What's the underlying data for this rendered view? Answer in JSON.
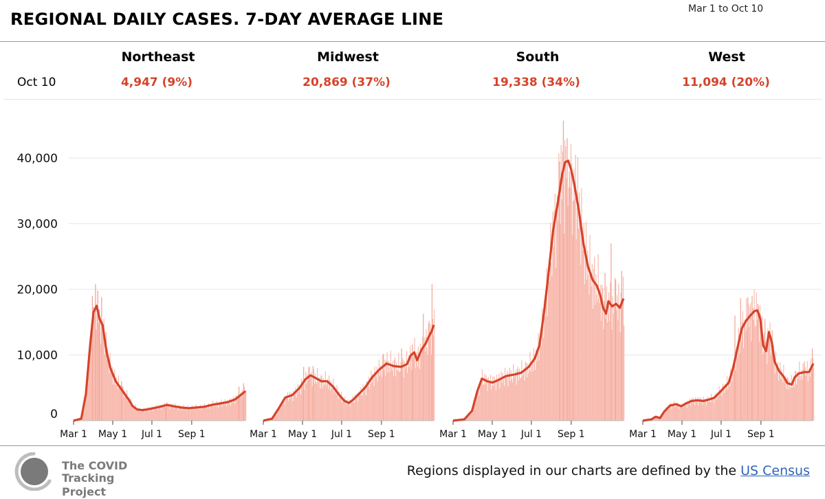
{
  "title": "REGIONAL DAILY CASES. 7-DAY AVERAGE LINE",
  "date_range": "Mar 1 to Oct 10",
  "row_label": "Oct 10",
  "regions": [
    {
      "name": "Northeast",
      "value": "4,947 (9%)"
    },
    {
      "name": "Midwest",
      "value": "20,869 (37%)"
    },
    {
      "name": "South",
      "value": "19,338 (34%)"
    },
    {
      "name": "West",
      "value": "11,094 (20%)"
    }
  ],
  "footer": {
    "logo_line1": "The COVID",
    "logo_line2": "Tracking Project",
    "note": "Regions displayed in our charts are defined by the",
    "link": "US Census"
  },
  "colors": {
    "bar": "#f8bcb1",
    "bar_spike": "#f3a394",
    "line": "#d5432a",
    "accent": "#d5432a"
  },
  "chart_data": {
    "type": "bar",
    "title": "REGIONAL DAILY CASES. 7-DAY AVERAGE LINE",
    "xlabel": "",
    "ylabel": "",
    "ylim": [
      0,
      40000
    ],
    "yticks": [
      0,
      10000,
      20000,
      30000,
      40000
    ],
    "ytick_labels": [
      "0",
      "10,000",
      "20,000",
      "30,000",
      "40,000"
    ],
    "xticks": [
      "Mar 1",
      "May 1",
      "Jul 1",
      "Sep 1"
    ],
    "xtick_days": [
      0,
      61,
      122,
      184
    ],
    "total_days": 224,
    "series": [
      {
        "name": "Northeast",
        "avg_knots": [
          [
            0,
            0
          ],
          [
            10,
            300
          ],
          [
            16,
            4000
          ],
          [
            22,
            12000
          ],
          [
            26,
            16500
          ],
          [
            30,
            17500
          ],
          [
            34,
            15500
          ],
          [
            38,
            14500
          ],
          [
            43,
            10500
          ],
          [
            48,
            8000
          ],
          [
            55,
            6000
          ],
          [
            61,
            5000
          ],
          [
            67,
            4000
          ],
          [
            72,
            3200
          ],
          [
            77,
            2200
          ],
          [
            83,
            1700
          ],
          [
            90,
            1600
          ],
          [
            100,
            1800
          ],
          [
            112,
            2100
          ],
          [
            122,
            2400
          ],
          [
            130,
            2200
          ],
          [
            140,
            2000
          ],
          [
            150,
            1900
          ],
          [
            160,
            2000
          ],
          [
            170,
            2100
          ],
          [
            180,
            2400
          ],
          [
            190,
            2600
          ],
          [
            200,
            2800
          ],
          [
            210,
            3200
          ],
          [
            218,
            3900
          ],
          [
            224,
            4500
          ]
        ],
        "spikes": [
          [
            24,
            19000
          ],
          [
            28,
            20800
          ],
          [
            31,
            19800
          ],
          [
            33,
            17000
          ],
          [
            36,
            18800
          ],
          [
            62,
            6000
          ],
          [
            120,
            2600
          ],
          [
            215,
            5200
          ],
          [
            221,
            5700
          ]
        ]
      },
      {
        "name": "Midwest",
        "avg_knots": [
          [
            0,
            0
          ],
          [
            12,
            300
          ],
          [
            22,
            2000
          ],
          [
            30,
            3500
          ],
          [
            40,
            3900
          ],
          [
            50,
            5000
          ],
          [
            58,
            6300
          ],
          [
            65,
            6900
          ],
          [
            72,
            6500
          ],
          [
            80,
            6000
          ],
          [
            88,
            6000
          ],
          [
            96,
            5200
          ],
          [
            104,
            4000
          ],
          [
            112,
            3000
          ],
          [
            118,
            2700
          ],
          [
            124,
            3200
          ],
          [
            132,
            4100
          ],
          [
            140,
            5000
          ],
          [
            150,
            6600
          ],
          [
            160,
            7800
          ],
          [
            170,
            8700
          ],
          [
            180,
            8300
          ],
          [
            190,
            8200
          ],
          [
            198,
            8600
          ],
          [
            203,
            9900
          ],
          [
            208,
            10400
          ],
          [
            212,
            9200
          ],
          [
            218,
            10800
          ],
          [
            224,
            11800
          ],
          [
            228,
            12800
          ],
          [
            232,
            13600
          ],
          [
            235,
            14600
          ]
        ],
        "spikes": [
          [
            55,
            8200
          ],
          [
            62,
            8100
          ],
          [
            68,
            8300
          ],
          [
            165,
            10200
          ],
          [
            190,
            11000
          ],
          [
            205,
            11600
          ],
          [
            220,
            16300
          ],
          [
            228,
            15200
          ],
          [
            232,
            20800
          ]
        ]
      },
      {
        "name": "South",
        "avg_knots": [
          [
            0,
            0
          ],
          [
            15,
            200
          ],
          [
            25,
            1500
          ],
          [
            32,
            4500
          ],
          [
            38,
            6400
          ],
          [
            45,
            6000
          ],
          [
            52,
            5800
          ],
          [
            60,
            6200
          ],
          [
            70,
            6800
          ],
          [
            80,
            7000
          ],
          [
            90,
            7300
          ],
          [
            100,
            8200
          ],
          [
            108,
            9500
          ],
          [
            114,
            11500
          ],
          [
            120,
            16500
          ],
          [
            126,
            22500
          ],
          [
            132,
            29000
          ],
          [
            138,
            33000
          ],
          [
            144,
            37500
          ],
          [
            148,
            39400
          ],
          [
            152,
            39600
          ],
          [
            156,
            38200
          ],
          [
            160,
            36000
          ],
          [
            166,
            32000
          ],
          [
            172,
            27000
          ],
          [
            178,
            23500
          ],
          [
            184,
            21500
          ],
          [
            190,
            20500
          ],
          [
            194,
            19200
          ],
          [
            198,
            17200
          ],
          [
            202,
            16300
          ],
          [
            205,
            18200
          ],
          [
            210,
            17400
          ],
          [
            215,
            17800
          ],
          [
            220,
            17200
          ],
          [
            225,
            18600
          ]
        ],
        "spikes": [
          [
            140,
            39500
          ],
          [
            145,
            45700
          ],
          [
            150,
            43000
          ],
          [
            153,
            38000
          ],
          [
            158,
            33500
          ],
          [
            200,
            22500
          ],
          [
            208,
            27000
          ],
          [
            214,
            21500
          ],
          [
            222,
            22800
          ]
        ]
      },
      {
        "name": "West",
        "avg_knots": [
          [
            0,
            0
          ],
          [
            12,
            200
          ],
          [
            18,
            600
          ],
          [
            24,
            400
          ],
          [
            30,
            1400
          ],
          [
            38,
            2300
          ],
          [
            46,
            2500
          ],
          [
            54,
            2200
          ],
          [
            60,
            2600
          ],
          [
            68,
            3000
          ],
          [
            76,
            3100
          ],
          [
            84,
            3000
          ],
          [
            92,
            3200
          ],
          [
            100,
            3500
          ],
          [
            108,
            4400
          ],
          [
            115,
            5200
          ],
          [
            120,
            5800
          ],
          [
            126,
            8000
          ],
          [
            132,
            11000
          ],
          [
            138,
            14000
          ],
          [
            144,
            15200
          ],
          [
            150,
            16000
          ],
          [
            156,
            16700
          ],
          [
            160,
            16800
          ],
          [
            164,
            15500
          ],
          [
            168,
            11500
          ],
          [
            172,
            10600
          ],
          [
            176,
            13500
          ],
          [
            180,
            12000
          ],
          [
            184,
            9000
          ],
          [
            190,
            7600
          ],
          [
            196,
            6800
          ],
          [
            202,
            5700
          ],
          [
            208,
            5500
          ],
          [
            212,
            6600
          ],
          [
            218,
            7200
          ],
          [
            226,
            7400
          ],
          [
            232,
            7400
          ],
          [
            238,
            8700
          ]
        ],
        "spikes": [
          [
            128,
            16000
          ],
          [
            136,
            18700
          ],
          [
            146,
            18800
          ],
          [
            152,
            19000
          ],
          [
            160,
            17800
          ],
          [
            170,
            15500
          ],
          [
            180,
            13800
          ],
          [
            225,
            9000
          ],
          [
            236,
            11000
          ]
        ]
      }
    ]
  }
}
